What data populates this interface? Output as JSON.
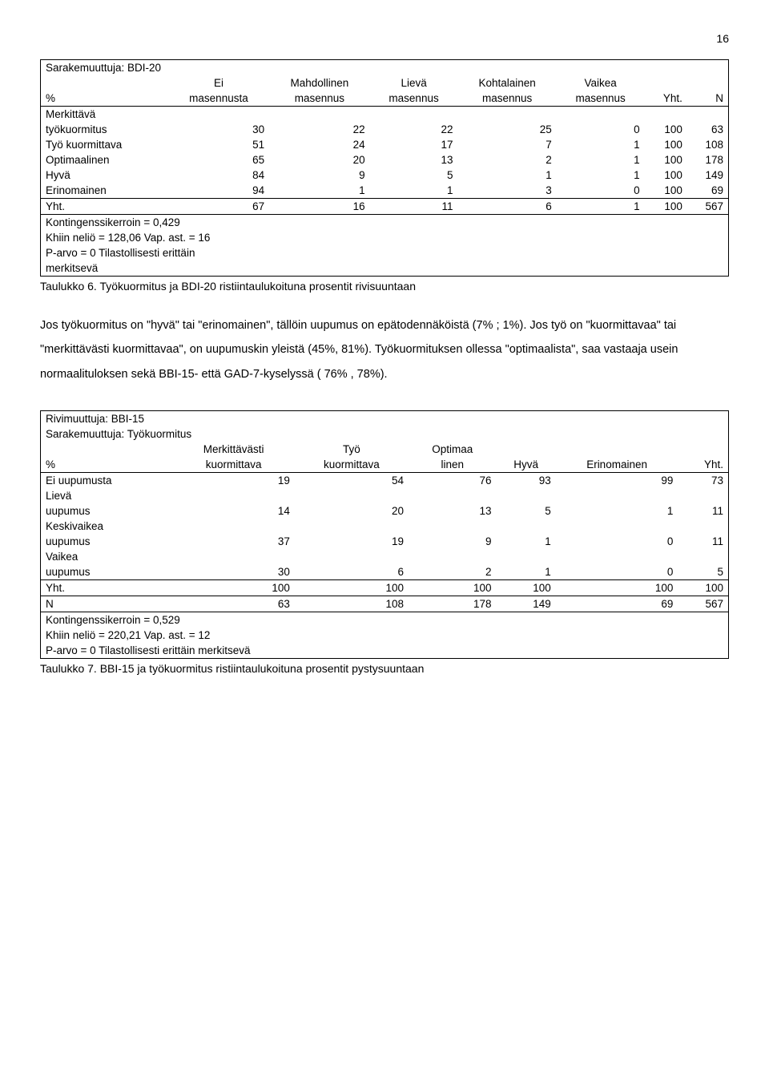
{
  "page_number": "16",
  "table1": {
    "title": "Sarakemuuttuja: BDI-20",
    "header_row1": [
      "",
      "Ei",
      "Mahdollinen",
      "Lievä",
      "Kohtalainen",
      "Vaikea",
      "",
      ""
    ],
    "header_row2": [
      "%",
      "masennusta",
      "masennus",
      "masennus",
      "masennus",
      "masennus",
      "Yht.",
      "N"
    ],
    "rows": [
      {
        "label_a": "Merkittävä",
        "label_b": "työkuormitus",
        "vals": [
          "30",
          "22",
          "22",
          "25",
          "0",
          "100",
          "63"
        ]
      },
      {
        "label_a": "",
        "label_b": "Työ kuormittava",
        "vals": [
          "51",
          "24",
          "17",
          "7",
          "1",
          "100",
          "108"
        ]
      },
      {
        "label_a": "",
        "label_b": "Optimaalinen",
        "vals": [
          "65",
          "20",
          "13",
          "2",
          "1",
          "100",
          "178"
        ]
      },
      {
        "label_a": "",
        "label_b": "Hyvä",
        "vals": [
          "84",
          "9",
          "5",
          "1",
          "1",
          "100",
          "149"
        ]
      },
      {
        "label_a": "",
        "label_b": "Erinomainen",
        "vals": [
          "94",
          "1",
          "1",
          "3",
          "0",
          "100",
          "69"
        ]
      }
    ],
    "total": {
      "label": "Yht.",
      "vals": [
        "67",
        "16",
        "11",
        "6",
        "1",
        "100",
        "567"
      ]
    },
    "notes": [
      "Kontingenssikerroin = 0,429",
      "Khiin neliö = 128,06   Vap. ast. = 16",
      "P-arvo = 0   Tilastollisesti erittäin",
      "merkitsevä"
    ],
    "caption": "Taulukko 6. Työkuormitus ja BDI-20 ristiintaulukoituna prosentit rivisuuntaan"
  },
  "body_paragraph": "Jos työkuormitus on \"hyvä\" tai \"erinomainen\", tällöin uupumus on epätodennäköistä (7% ; 1%). Jos työ on \"kuormittavaa\" tai \"merkittävästi kuormittavaa\", on uupumuskin yleistä (45%,  81%). Työkuormituksen ollessa \"optimaalista\", saa vastaaja usein normaalituloksen sekä  BBI-15- että GAD-7-kyselyssä ( 76% , 78%).",
  "table2": {
    "title1": "Rivimuuttuja: BBI-15",
    "title2": "Sarakemuuttuja: Työkuormitus",
    "header_row1": [
      "",
      "Merkittävästi",
      "Työ",
      "Optimaa",
      "",
      "",
      ""
    ],
    "header_row2": [
      "%",
      "kuormittava",
      "kuormittava",
      "linen",
      "Hyvä",
      "Erinomainen",
      "Yht."
    ],
    "rows": [
      {
        "label_a": "",
        "label_b": "Ei uupumusta",
        "vals": [
          "19",
          "54",
          "76",
          "93",
          "99",
          "73"
        ]
      },
      {
        "label_a": "Lievä",
        "label_b": "uupumus",
        "vals": [
          "14",
          "20",
          "13",
          "5",
          "1",
          "11"
        ]
      },
      {
        "label_a": "Keskivaikea",
        "label_b": "uupumus",
        "vals": [
          "37",
          "19",
          "9",
          "1",
          "0",
          "11"
        ]
      },
      {
        "label_a": "Vaikea",
        "label_b": "uupumus",
        "vals": [
          "30",
          "6",
          "2",
          "1",
          "0",
          "5"
        ]
      }
    ],
    "total": {
      "label": "Yht.",
      "vals": [
        "100",
        "100",
        "100",
        "100",
        "100",
        "100"
      ]
    },
    "n_row": {
      "label": "N",
      "vals": [
        "63",
        "108",
        "178",
        "149",
        "69",
        "567"
      ]
    },
    "notes": [
      "Kontingenssikerroin = 0,529",
      "Khiin neliö = 220,21   Vap. ast. = 12",
      "P-arvo = 0   Tilastollisesti erittäin merkitsevä"
    ],
    "caption": "Taulukko 7. BBI-15 ja työkuormitus ristiintaulukoituna prosentit pystysuuntaan"
  }
}
